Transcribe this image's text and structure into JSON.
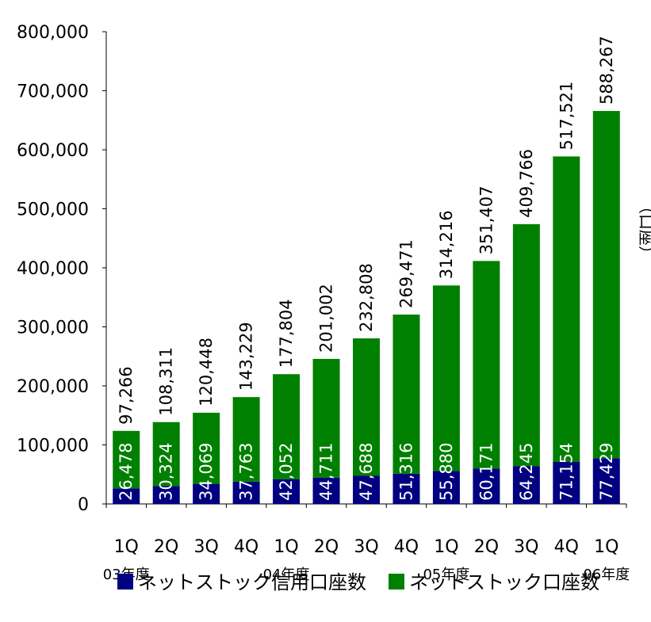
{
  "chart_data": {
    "type": "bar",
    "stacked": true,
    "categories": [
      "1Q",
      "2Q",
      "3Q",
      "4Q",
      "1Q",
      "2Q",
      "3Q",
      "4Q",
      "1Q",
      "2Q",
      "3Q",
      "4Q",
      "1Q"
    ],
    "year_labels": [
      {
        "label": "03年度",
        "index": 0
      },
      {
        "label": "04年度",
        "index": 4
      },
      {
        "label": "05年度",
        "index": 8
      },
      {
        "label": "06年度",
        "index": 12
      }
    ],
    "series": [
      {
        "name": "ネットストック信用口座数",
        "color": "#000080",
        "values": [
          26478,
          30324,
          34069,
          37763,
          42052,
          44711,
          47688,
          51316,
          55880,
          60171,
          64245,
          71154,
          77429
        ]
      },
      {
        "name": "ネットストック口座数",
        "color": "#008000",
        "values": [
          97266,
          108311,
          120448,
          143229,
          177804,
          201002,
          232808,
          269471,
          314216,
          351407,
          409766,
          517521,
          588267
        ]
      }
    ],
    "ylim": [
      0,
      800000
    ],
    "yticks": [
      0,
      100000,
      200000,
      300000,
      400000,
      500000,
      600000,
      700000,
      800000
    ],
    "ytick_labels": [
      "0",
      "100,000",
      "200,000",
      "300,000",
      "400,000",
      "500,000",
      "600,000",
      "700,000",
      "800,000"
    ],
    "unit_label": "（口座）",
    "legend_position": "bottom",
    "grid": false
  }
}
